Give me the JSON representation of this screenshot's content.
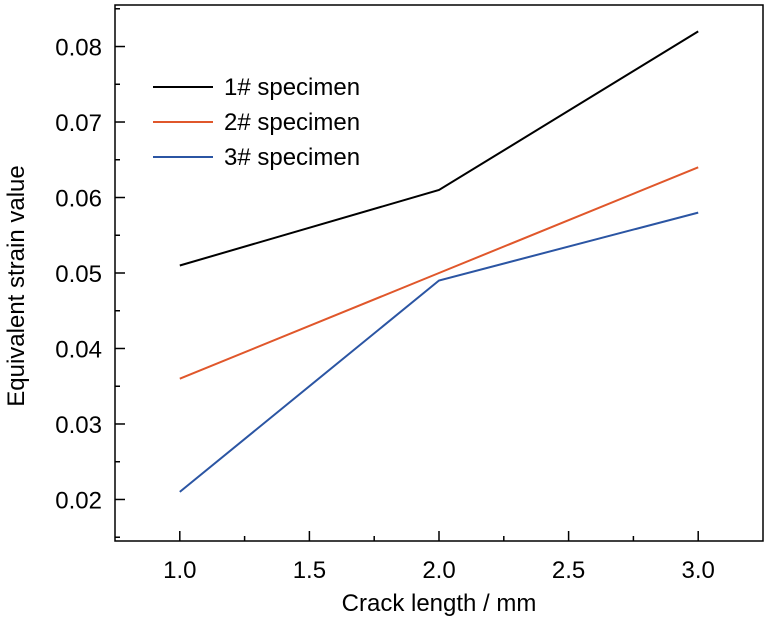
{
  "chart_data": {
    "type": "line",
    "xlabel": "Crack length / mm",
    "ylabel": "Equivalent strain value",
    "xlim": [
      0.75,
      3.25
    ],
    "ylim": [
      0.0145,
      0.0855
    ],
    "x_ticks": [
      "1.0",
      "1.5",
      "2.0",
      "2.5",
      "3.0"
    ],
    "x_tick_values": [
      1.0,
      1.5,
      2.0,
      2.5,
      3.0
    ],
    "y_ticks": [
      "0.02",
      "0.03",
      "0.04",
      "0.05",
      "0.06",
      "0.07",
      "0.08"
    ],
    "y_tick_values": [
      0.02,
      0.03,
      0.04,
      0.05,
      0.06,
      0.07,
      0.08
    ],
    "x": [
      1.0,
      2.0,
      3.0
    ],
    "series": [
      {
        "name": "1# specimen",
        "color": "#000000",
        "values": [
          0.051,
          0.061,
          0.082
        ]
      },
      {
        "name": "2# specimen",
        "color": "#e0572b",
        "values": [
          0.036,
          0.05,
          0.064
        ]
      },
      {
        "name": "3# specimen",
        "color": "#2b55a3",
        "values": [
          0.021,
          0.049,
          0.058
        ]
      }
    ],
    "legend_position": "top-left",
    "grid": false
  }
}
